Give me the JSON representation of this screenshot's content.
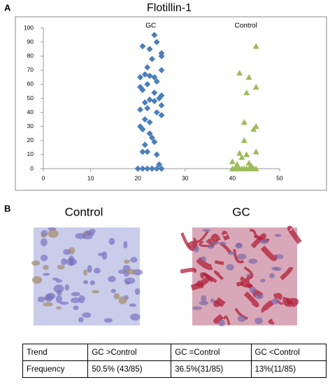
{
  "panel_labels": [
    "A",
    "B"
  ],
  "chart_data": {
    "type": "scatter",
    "title": "Flotillin-1",
    "xlim": [
      0,
      50
    ],
    "xticks": [
      0,
      10,
      20,
      30,
      40,
      50
    ],
    "ylim": [
      0,
      100
    ],
    "yticks": [
      0,
      10,
      20,
      30,
      40,
      50,
      60,
      70,
      80,
      90,
      100
    ],
    "series": [
      {
        "name": "GC",
        "color": "#4a7ebb",
        "marker": "diamond",
        "x": [
          23.5,
          24,
          21,
          22.5,
          25,
          25,
          23,
          22,
          25,
          21.5,
          22.5,
          23.5,
          20.5,
          24,
          22,
          20.5,
          21,
          23.5,
          25,
          24.5,
          22.5,
          23.5,
          21.5,
          25,
          22,
          20.5,
          24,
          25,
          21.5,
          22.5,
          20.5,
          21,
          22.5,
          23,
          23.5,
          21.5,
          21,
          22,
          24,
          24.5,
          20,
          21,
          22,
          23,
          24,
          25
        ],
        "values": [
          95,
          90,
          87,
          85,
          82,
          80,
          78,
          72,
          70,
          67,
          66,
          65,
          65,
          62,
          60,
          58,
          56,
          54,
          52,
          50,
          49,
          48,
          47,
          45,
          43,
          42,
          40,
          38,
          35,
          33,
          30,
          28,
          25,
          22,
          19,
          17,
          12,
          12,
          10,
          3,
          0,
          0,
          0,
          0,
          0,
          0
        ]
      },
      {
        "name": "Control",
        "color": "#9bbb59",
        "marker": "triangle",
        "x": [
          45,
          41.5,
          43.5,
          45,
          43,
          42.5,
          45,
          44.5,
          42.5,
          45,
          41.5,
          43,
          42,
          40,
          43.5,
          41,
          44,
          40,
          40.5,
          41,
          41.5,
          42,
          42.5,
          43,
          43.5,
          44,
          44.5,
          45
        ],
        "values": [
          87,
          68,
          65,
          58,
          54,
          33,
          30,
          28,
          20,
          12,
          11,
          10,
          8,
          5,
          4,
          3,
          2,
          0,
          0,
          0,
          0,
          0,
          0,
          0,
          0,
          0,
          0,
          0
        ]
      }
    ]
  },
  "images": [
    {
      "caption": "Control"
    },
    {
      "caption": "GC"
    }
  ],
  "table": {
    "rows": [
      [
        "Trend",
        "GC >Control",
        "GC =Control",
        "GC <Control"
      ],
      [
        "Frequency",
        "50.5% (43/85)",
        "36.5%(31/85)",
        "13%(11/85)"
      ]
    ]
  }
}
